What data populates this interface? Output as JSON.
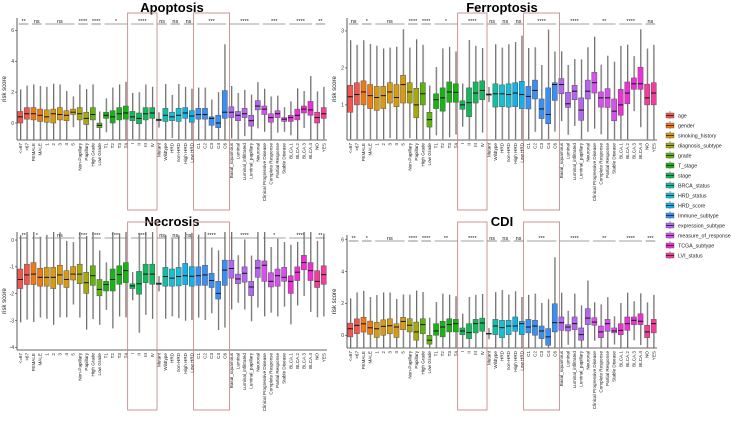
{
  "chart_data": {
    "type": "boxplot",
    "ylabel": "risk score",
    "groups": [
      {
        "name": "age",
        "color": "#F4564E",
        "categories": [
          "<=67",
          ">67"
        ]
      },
      {
        "name": "gender",
        "color": "#F07A12",
        "categories": [
          "FEMALE",
          "MALE"
        ]
      },
      {
        "name": "smoking_history",
        "color": "#D99A0E",
        "categories": [
          "1",
          "2",
          "3",
          "4",
          "5"
        ]
      },
      {
        "name": "diagnosis_subtype",
        "color": "#A8A80A",
        "categories": [
          "Non-Papillary",
          "Papillary"
        ]
      },
      {
        "name": "grade",
        "color": "#5EB60B",
        "categories": [
          "High Grade",
          "Low Grade"
        ]
      },
      {
        "name": "T_stage",
        "color": "#16B514",
        "categories": [
          "T1",
          "T2",
          "T3",
          "T4"
        ]
      },
      {
        "name": "stage",
        "color": "#12B85C",
        "categories": [
          "I",
          "II",
          "III",
          "IV"
        ]
      },
      {
        "name": "BRCA_status",
        "color": "#10BFA5",
        "categories": [
          "Mutant",
          "Wildtype"
        ]
      },
      {
        "name": "HRD_status",
        "color": "#12C1D6",
        "categories": [
          "HRD",
          "non-HRD"
        ]
      },
      {
        "name": "HRD_score",
        "color": "#0FB2EA",
        "categories": [
          "High HRD",
          "Low HRD"
        ]
      },
      {
        "name": "Immune_subtype",
        "color": "#3A8FF5",
        "categories": [
          "C1",
          "C2",
          "C3",
          "C4",
          "C6"
        ]
      },
      {
        "name": "expression_subtype",
        "color": "#B366F0",
        "categories": [
          "Basal_squamous",
          "Luminal",
          "Luminal_infiltrated",
          "Luminal_papillary",
          "Neuronal"
        ]
      },
      {
        "name": "measure_of_response",
        "color": "#D84FF0",
        "categories": [
          "Clinical Progressive Disease",
          "Complete Response",
          "Partial Response",
          "Stable Disease"
        ]
      },
      {
        "name": "TCGA_subtype",
        "color": "#EE2FD8",
        "categories": [
          "BLCA.1",
          "BLCA.2",
          "BLCA.3",
          "BLCA.4"
        ]
      },
      {
        "name": "LVI_status",
        "color": "#F43C98",
        "categories": [
          "NO",
          "YES"
        ]
      }
    ],
    "highlighted_groups": [
      "stage",
      "Immune_subtype"
    ],
    "legend_placement": "right",
    "panels": [
      {
        "title": "Apoptosis",
        "ylim": [
          -1.1,
          6.8
        ],
        "yticks": [
          0,
          2,
          4,
          6
        ],
        "significance": [
          "**",
          "ns",
          "ns",
          "****",
          "****",
          "*",
          "****",
          "ns",
          "ns",
          "ns",
          "***",
          "****",
          "***",
          "****",
          "**"
        ],
        "boxes_q1_median_q3": [
          [
            0,
            0.4,
            0.75
          ],
          [
            0.25,
            0.6,
            1.0
          ],
          [
            0.2,
            0.6,
            1.0
          ],
          [
            0.1,
            0.5,
            0.9
          ],
          [
            0.05,
            0.4,
            0.85
          ],
          [
            0,
            0.6,
            0.9
          ],
          [
            0.2,
            0.55,
            1.0
          ],
          [
            0.15,
            0.5,
            0.8
          ],
          [
            0.55,
            0.7,
            0.9
          ],
          [
            0.2,
            0.6,
            1.0
          ],
          [
            -0.1,
            0.3,
            0.7
          ],
          [
            0.2,
            0.55,
            1.0
          ],
          [
            -0.3,
            -0.15,
            0
          ],
          [
            0.3,
            0.5,
            0.7
          ],
          [
            0,
            0.4,
            0.8
          ],
          [
            0.2,
            0.6,
            1.0
          ],
          [
            0.25,
            0.65,
            1.1
          ],
          [
            0.15,
            0.4,
            0.75
          ],
          [
            -0.05,
            0.3,
            0.65
          ],
          [
            0.2,
            0.6,
            1.0
          ],
          [
            0.3,
            0.65,
            1.0
          ],
          [
            0.15,
            0.2,
            0.25
          ],
          [
            0.1,
            0.5,
            0.95
          ],
          [
            0.15,
            0.4,
            0.7
          ],
          [
            0.1,
            0.5,
            0.95
          ],
          [
            0.3,
            0.65,
            1.0
          ],
          [
            0.05,
            0.45,
            0.8
          ],
          [
            0.25,
            0.55,
            0.95
          ],
          [
            0.25,
            0.55,
            0.95
          ],
          [
            -0.15,
            0.3,
            0.4
          ],
          [
            -0.3,
            0,
            0.5
          ],
          [
            0.3,
            0.7,
            2.1
          ],
          [
            0.35,
            0.7,
            1.05
          ],
          [
            0.15,
            0.5,
            0.75
          ],
          [
            0.35,
            0.6,
            0.95
          ],
          [
            -0.2,
            0.15,
            0.5
          ],
          [
            0.85,
            1.1,
            1.45
          ],
          [
            0.55,
            0.9,
            1.1
          ],
          [
            0.05,
            0.35,
            0.6
          ],
          [
            0.35,
            0.6,
            0.8
          ],
          [
            0.1,
            0.25,
            0.35
          ],
          [
            0.1,
            0.35,
            0.5
          ],
          [
            0.2,
            0.5,
            0.9
          ],
          [
            0.65,
            0.9,
            1.1
          ],
          [
            0.5,
            0.85,
            1.4
          ],
          [
            0,
            0.35,
            0.7
          ],
          [
            0.3,
            0.6,
            1.0
          ]
        ]
      },
      {
        "title": "Ferroptosis",
        "ylim": [
          0.05,
          3.35
        ],
        "yticks": [
          1,
          2,
          3
        ],
        "significance": [
          "ns",
          "*",
          "ns",
          "****",
          "****",
          "*",
          "****",
          "ns",
          "ns",
          "ns",
          "****",
          "****",
          "**",
          "****",
          "ns"
        ],
        "boxes_q1_median_q3": [
          [
            0.8,
            1.22,
            1.53
          ],
          [
            1.0,
            1.28,
            1.6
          ],
          [
            1.0,
            1.35,
            1.65
          ],
          [
            0.9,
            1.25,
            1.55
          ],
          [
            0.85,
            1.2,
            1.5
          ],
          [
            0.9,
            1.25,
            1.5
          ],
          [
            1.05,
            1.35,
            1.6
          ],
          [
            0.95,
            1.2,
            1.55
          ],
          [
            1.05,
            1.55,
            1.8
          ],
          [
            1.05,
            1.35,
            1.6
          ],
          [
            0.65,
            1.0,
            1.45
          ],
          [
            1.0,
            1.3,
            1.6
          ],
          [
            0.4,
            0.6,
            0.8
          ],
          [
            0.9,
            1.14,
            1.3
          ],
          [
            0.83,
            1.19,
            1.46
          ],
          [
            1.07,
            1.35,
            1.62
          ],
          [
            1.07,
            1.34,
            1.57
          ],
          [
            0.88,
            1.0,
            1.11
          ],
          [
            0.68,
            1.06,
            1.46
          ],
          [
            1.05,
            1.32,
            1.62
          ],
          [
            1.14,
            1.39,
            1.65
          ],
          [
            1.26,
            1.28,
            1.3
          ],
          [
            0.94,
            1.3,
            1.57
          ],
          [
            0.95,
            1.3,
            1.54
          ],
          [
            0.94,
            1.28,
            1.57
          ],
          [
            0.95,
            1.32,
            1.6
          ],
          [
            0.9,
            1.28,
            1.64
          ],
          [
            0.89,
            1.23,
            1.5
          ],
          [
            1.16,
            1.39,
            1.67
          ],
          [
            0.63,
            0.89,
            1.16
          ],
          [
            0.49,
            0.74,
            1.46
          ],
          [
            1.12,
            1.55,
            1.6
          ],
          [
            1.3,
            1.55,
            1.71
          ],
          [
            0.93,
            1.03,
            1.34
          ],
          [
            1.14,
            1.37,
            1.53
          ],
          [
            0.58,
            0.86,
            1.19
          ],
          [
            1.16,
            1.37,
            1.67
          ],
          [
            1.32,
            1.6,
            1.88
          ],
          [
            0.94,
            1.19,
            1.35
          ],
          [
            0.93,
            1.19,
            1.44
          ],
          [
            0.57,
            0.83,
            1.16
          ],
          [
            0.72,
            1.0,
            1.42
          ],
          [
            1.03,
            1.32,
            1.62
          ],
          [
            1.42,
            1.57,
            1.73
          ],
          [
            1.42,
            1.57,
            2.02
          ],
          [
            1.0,
            1.19,
            1.56
          ],
          [
            1.0,
            1.32,
            1.6
          ]
        ]
      },
      {
        "title": "Necrosis",
        "ylim": [
          -4.1,
          0.3
        ],
        "yticks": [
          0,
          -1,
          -2,
          -3,
          -4
        ],
        "significance": [
          "**",
          "*",
          "ns",
          "****",
          "****",
          "****",
          "****",
          "ns",
          "ns",
          "ns",
          "****",
          "****",
          "*",
          "****",
          "**"
        ],
        "boxes_q1_median_q3": [
          [
            -1.81,
            -1.47,
            -1.08
          ],
          [
            -1.66,
            -1.3,
            -0.9
          ],
          [
            -1.66,
            -1.27,
            -0.84
          ],
          [
            -1.72,
            -1.39,
            -1.05
          ],
          [
            -1.72,
            -1.39,
            -1.02
          ],
          [
            -1.81,
            -1.39,
            -1.02
          ],
          [
            -1.65,
            -1.3,
            -0.94
          ],
          [
            -1.77,
            -1.47,
            -1.14
          ],
          [
            -1.49,
            -1.27,
            -0.99
          ],
          [
            -1.63,
            -1.27,
            -0.9
          ],
          [
            -1.99,
            -1.59,
            -1.2
          ],
          [
            -1.69,
            -1.33,
            -0.96
          ],
          [
            -2.08,
            -1.84,
            -1.47
          ],
          [
            -1.9,
            -1.66,
            -1.54
          ],
          [
            -1.9,
            -1.47,
            -1.08
          ],
          [
            -1.65,
            -1.29,
            -0.96
          ],
          [
            -1.59,
            -1.14,
            -0.84
          ],
          [
            -1.81,
            -1.71,
            -1.63
          ],
          [
            -2.02,
            -1.63,
            -1.17
          ],
          [
            -1.59,
            -1.27,
            -0.9
          ],
          [
            -1.65,
            -1.27,
            -0.9
          ],
          [
            -1.66,
            -1.63,
            -1.6
          ],
          [
            -1.72,
            -1.36,
            -1.02
          ],
          [
            -1.72,
            -1.42,
            -1.08
          ],
          [
            -1.71,
            -1.36,
            -1.02
          ],
          [
            -1.66,
            -1.33,
            -0.87
          ],
          [
            -1.72,
            -1.35,
            -0.99
          ],
          [
            -1.69,
            -1.33,
            -1.0
          ],
          [
            -1.69,
            -1.3,
            -0.94
          ],
          [
            -1.77,
            -1.51,
            -1.24
          ],
          [
            -2.2,
            -1.99,
            -1.54
          ],
          [
            -1.69,
            -1.12,
            -0.75
          ],
          [
            -1.42,
            -1.06,
            -0.75
          ],
          [
            -1.63,
            -1.45,
            -1.27
          ],
          [
            -1.57,
            -1.24,
            -1.0
          ],
          [
            -2.07,
            -1.75,
            -1.54
          ],
          [
            -1.39,
            -1.04,
            -0.75
          ],
          [
            -1.54,
            -0.94,
            -0.78
          ],
          [
            -1.75,
            -1.54,
            -1.22
          ],
          [
            -1.72,
            -1.33,
            -1.08
          ],
          [
            -1.54,
            -1.39,
            -1.02
          ],
          [
            -1.99,
            -1.54,
            -1.33
          ],
          [
            -1.51,
            -1.2,
            -1.0
          ],
          [
            -1.11,
            -0.84,
            -0.57
          ],
          [
            -1.51,
            -1.14,
            -0.84
          ],
          [
            -1.77,
            -1.54,
            -1.14
          ],
          [
            -1.65,
            -1.29,
            -0.96
          ]
        ]
      },
      {
        "title": "CDI",
        "ylim": [
          -0.8,
          6.3
        ],
        "yticks": [
          0,
          2,
          4,
          6
        ],
        "significance": [
          "**",
          "*",
          "ns",
          "****",
          "****",
          "**",
          "****",
          "ns",
          "ns",
          "ns",
          "***",
          "****",
          "**",
          "****",
          "***"
        ],
        "boxes_q1_median_q3": [
          [
            -0.1,
            0.41,
            0.76
          ],
          [
            0.1,
            0.62,
            1.03
          ],
          [
            0.2,
            0.72,
            1.13
          ],
          [
            0.06,
            0.47,
            0.89
          ],
          [
            -0.14,
            0.41,
            0.82
          ],
          [
            0,
            0.56,
            0.97
          ],
          [
            0.1,
            0.6,
            1.03
          ],
          [
            -0.14,
            0.52,
            0.72
          ],
          [
            0.35,
            0.87,
            1.13
          ],
          [
            0.21,
            0.63,
            1.04
          ],
          [
            -0.31,
            0.21,
            0.83
          ],
          [
            0.1,
            0.67,
            1.04
          ],
          [
            -0.56,
            -0.31,
            0
          ],
          [
            0,
            0.27,
            0.73
          ],
          [
            -0.1,
            0.52,
            0.88
          ],
          [
            0.21,
            0.67,
            1.04
          ],
          [
            0.21,
            0.73,
            1.0
          ],
          [
            0.04,
            0.27,
            0.46
          ],
          [
            -0.21,
            0.17,
            0.73
          ],
          [
            0.15,
            0.73,
            1.0
          ],
          [
            0.25,
            0.77,
            1.08
          ],
          [
            0.08,
            0.1,
            0.12
          ],
          [
            0.04,
            0.58,
            1.0
          ],
          [
            -0.15,
            0.48,
            0.94
          ],
          [
            0.04,
            0.58,
            0.94
          ],
          [
            0.25,
            0.58,
            1.15
          ],
          [
            0.04,
            0.73,
            0.88
          ],
          [
            0.15,
            0.52,
            1.0
          ],
          [
            0,
            0.58,
            0.94
          ],
          [
            -0.21,
            0.27,
            0.58
          ],
          [
            -0.63,
            -0.1,
            0.42
          ],
          [
            0.21,
            0.79,
            1.98
          ],
          [
            0.31,
            0.79,
            1.15
          ],
          [
            0.27,
            0.52,
            0.67
          ],
          [
            0.35,
            0.73,
            1.15
          ],
          [
            -0.31,
            0.04,
            0.46
          ],
          [
            0.67,
            1.08,
            1.67
          ],
          [
            0.63,
            0.83,
            1.1
          ],
          [
            -0.15,
            0.21,
            0.58
          ],
          [
            0.25,
            0.73,
            1.0
          ],
          [
            0.15,
            0.27,
            0.46
          ],
          [
            0.04,
            0.31,
            0.73
          ],
          [
            0.31,
            0.73,
            1.15
          ],
          [
            0.67,
            0.94,
            1.15
          ],
          [
            0.67,
            0.88,
            1.35
          ],
          [
            -0.15,
            0.21,
            0.63
          ],
          [
            0.15,
            0.73,
            1.0
          ]
        ]
      }
    ]
  }
}
